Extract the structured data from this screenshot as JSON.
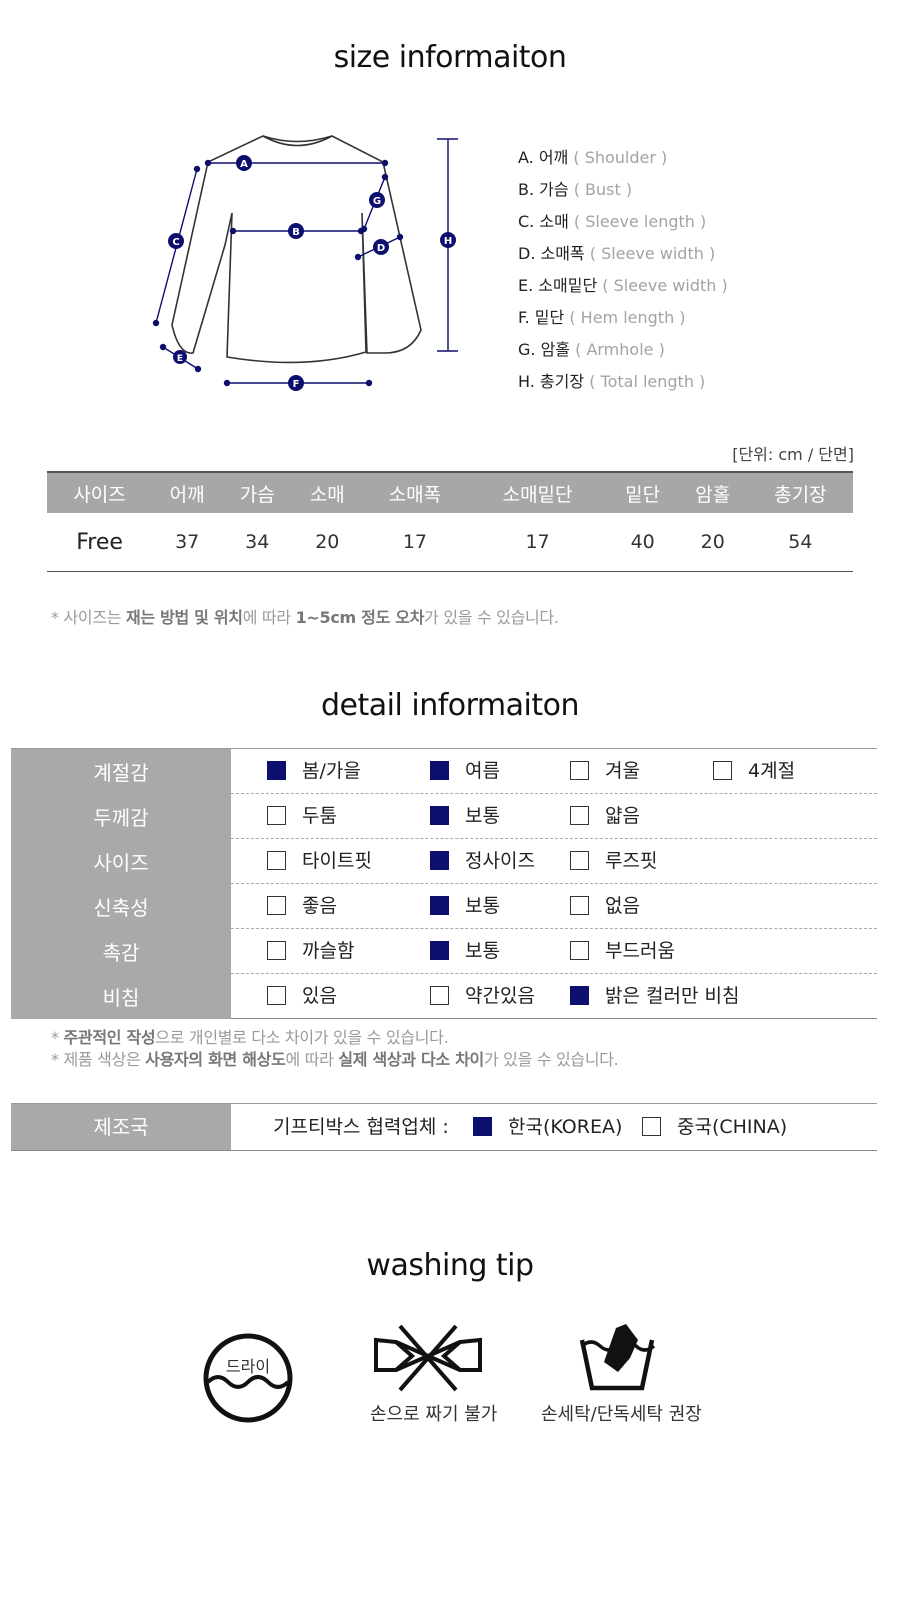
{
  "size_section": {
    "title": "size informaiton",
    "diagram_markers": [
      "A",
      "B",
      "C",
      "D",
      "E",
      "F",
      "G",
      "H"
    ],
    "legend": [
      {
        "ko": "A. 어깨",
        "en": "( Shoulder )"
      },
      {
        "ko": "B. 가슴",
        "en": "( Bust )"
      },
      {
        "ko": "C. 소매",
        "en": "( Sleeve length )"
      },
      {
        "ko": "D. 소매폭",
        "en": "( Sleeve width )"
      },
      {
        "ko": "E. 소매밑단",
        "en": "( Sleeve width )"
      },
      {
        "ko": "F. 밑단",
        "en": "( Hem length )"
      },
      {
        "ko": "G. 암홀",
        "en": "( Armhole )"
      },
      {
        "ko": "H. 총기장",
        "en": "( Total length )"
      }
    ],
    "unit": "[단위: cm / 단면]",
    "table": {
      "headers": [
        "사이즈",
        "어깨",
        "가슴",
        "소매",
        "소매폭",
        "소매밑단",
        "밑단",
        "암홀",
        "총기장"
      ],
      "rows": [
        [
          "Free",
          "37",
          "34",
          "20",
          "17",
          "17",
          "40",
          "20",
          "54"
        ]
      ]
    },
    "note": {
      "p1": "* 사이즈는 ",
      "b1": "재는 방법 및 위치",
      "p2": "에 따라 ",
      "b2": "1~5cm 정도 오차",
      "p3": "가 있을 수 있습니다."
    },
    "accent_color": "#0d0f6e"
  },
  "detail_section": {
    "title": "detail informaiton",
    "rows": [
      {
        "label": "계절감",
        "options": [
          {
            "text": "봄/가을",
            "checked": true
          },
          {
            "text": "여름",
            "checked": true
          },
          {
            "text": "겨울",
            "checked": false
          },
          {
            "text": "4계절",
            "checked": false
          }
        ]
      },
      {
        "label": "두께감",
        "options": [
          {
            "text": "두툼",
            "checked": false
          },
          {
            "text": "보통",
            "checked": true
          },
          {
            "text": "얇음",
            "checked": false
          }
        ]
      },
      {
        "label": "사이즈",
        "options": [
          {
            "text": "타이트핏",
            "checked": false
          },
          {
            "text": "정사이즈",
            "checked": true
          },
          {
            "text": "루즈핏",
            "checked": false
          }
        ]
      },
      {
        "label": "신축성",
        "options": [
          {
            "text": "좋음",
            "checked": false
          },
          {
            "text": "보통",
            "checked": true
          },
          {
            "text": "없음",
            "checked": false
          }
        ]
      },
      {
        "label": "촉감",
        "options": [
          {
            "text": "까슬함",
            "checked": false
          },
          {
            "text": "보통",
            "checked": true
          },
          {
            "text": "부드러움",
            "checked": false
          }
        ]
      },
      {
        "label": "비침",
        "options": [
          {
            "text": "있음",
            "checked": false
          },
          {
            "text": "약간있음",
            "checked": false
          },
          {
            "text": "밝은 컬러만 비침",
            "checked": true
          }
        ]
      }
    ],
    "notes": [
      {
        "p1": "* ",
        "b1": "주관적인 작성",
        "p2": "으로 개인별로 다소 차이가 있을 수 있습니다.",
        "b2": "",
        "p3": ""
      },
      {
        "p1": "* 제품 색상은 ",
        "b1": "사용자의 화면 해상도",
        "p2": "에 따라 ",
        "b2": "실제 색상과 다소 차이",
        "p3": "가 있을 수 있습니다."
      }
    ],
    "origin": {
      "label": "제조국",
      "partner_text": "기프티박스 협력업체 :",
      "options": [
        {
          "text": "한국(KOREA)",
          "checked": true
        },
        {
          "text": "중국(CHINA)",
          "checked": false
        }
      ]
    }
  },
  "washing_section": {
    "title": "washing tip",
    "tips": [
      {
        "icon": "dry-clean-icon",
        "icon_text": "드라이",
        "label": ""
      },
      {
        "icon": "no-wringing-icon",
        "label": "손으로 짜기 불가"
      },
      {
        "icon": "hand-wash-icon",
        "label": "손세탁/단독세탁 권장"
      }
    ]
  }
}
